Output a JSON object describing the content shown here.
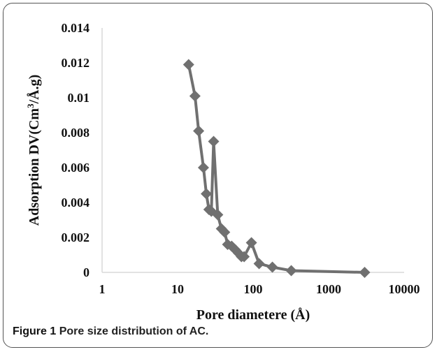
{
  "chart_data": {
    "type": "scatter",
    "xlabel": "Pore diametere (Å)",
    "ylabel_parts": [
      "Adsorption DV(Cm",
      "3",
      "/Å.g)"
    ],
    "x_scale": "log",
    "xlim": [
      1,
      10000
    ],
    "ylim": [
      0,
      0.014
    ],
    "x_ticks": [
      "1",
      "10",
      "100",
      "1000",
      "10000"
    ],
    "y_ticks": [
      "0",
      "0.002",
      "0.004",
      "0.006",
      "0.008",
      "0.01",
      "0.012",
      "0.014"
    ],
    "grid": false,
    "series_color": "#707070",
    "points": [
      {
        "x": 14,
        "y": 0.0119
      },
      {
        "x": 17,
        "y": 0.0101
      },
      {
        "x": 19,
        "y": 0.0081
      },
      {
        "x": 22,
        "y": 0.006
      },
      {
        "x": 24,
        "y": 0.0045
      },
      {
        "x": 26,
        "y": 0.0036
      },
      {
        "x": 28,
        "y": 0.0035
      },
      {
        "x": 30,
        "y": 0.0075
      },
      {
        "x": 34,
        "y": 0.0033
      },
      {
        "x": 38,
        "y": 0.0025
      },
      {
        "x": 42,
        "y": 0.0023
      },
      {
        "x": 46,
        "y": 0.0016
      },
      {
        "x": 52,
        "y": 0.0015
      },
      {
        "x": 58,
        "y": 0.0013
      },
      {
        "x": 64,
        "y": 0.0011
      },
      {
        "x": 70,
        "y": 0.0009
      },
      {
        "x": 76,
        "y": 0.0009
      },
      {
        "x": 95,
        "y": 0.0017
      },
      {
        "x": 120,
        "y": 0.0005
      },
      {
        "x": 180,
        "y": 0.0003
      },
      {
        "x": 320,
        "y": 0.0001
      },
      {
        "x": 3000,
        "y": 0.0
      }
    ]
  },
  "caption": {
    "label": "Figure 1",
    "text": "Pore size distribution of AC."
  }
}
